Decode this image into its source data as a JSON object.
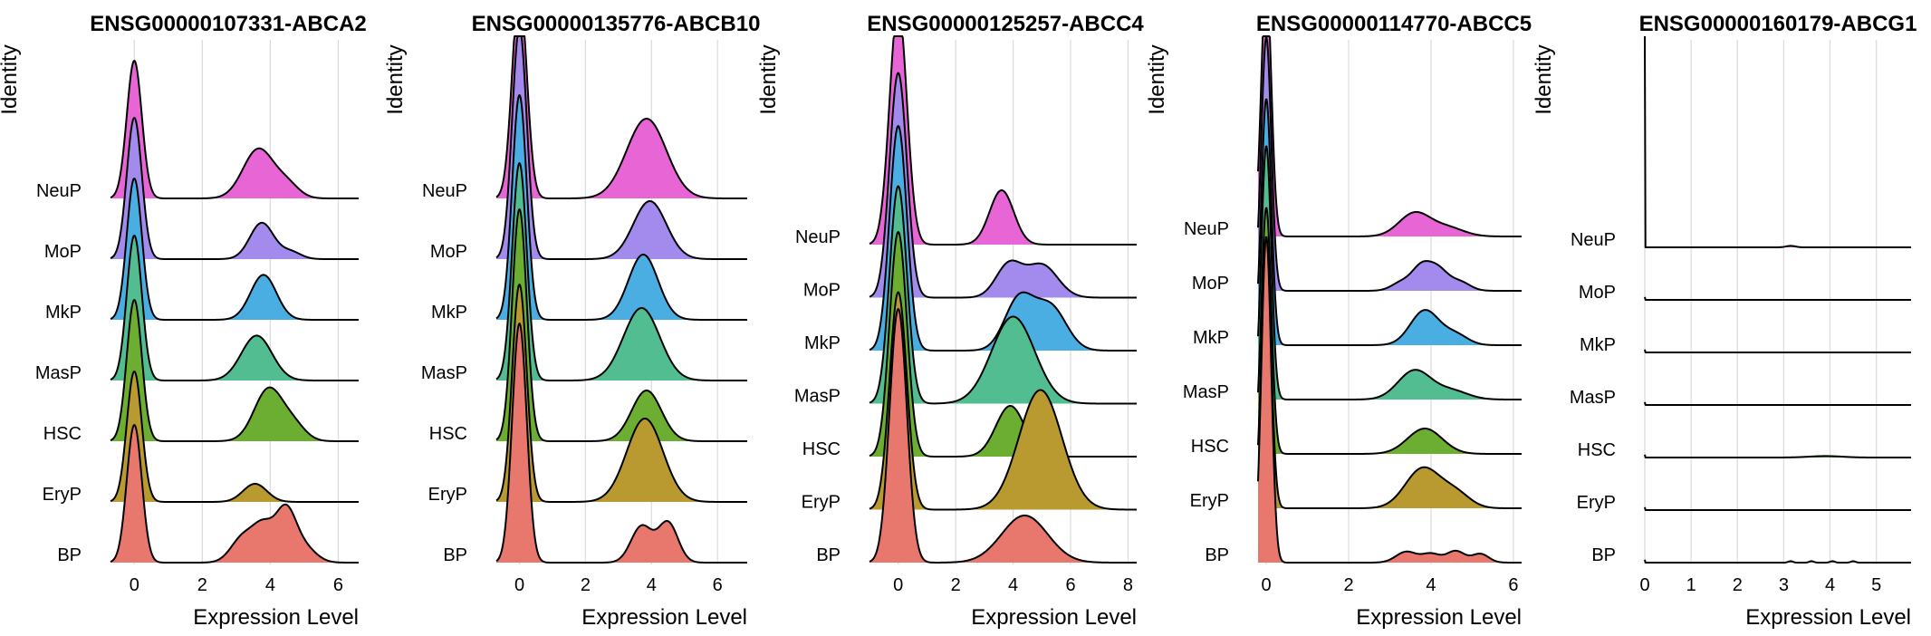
{
  "chart_data": [
    {
      "type": "area",
      "title": "ENSG00000107331-ABCA2",
      "xlabel": "Expression Level",
      "ylabel": "Identity",
      "x_ticks": [
        0,
        2,
        4,
        6
      ],
      "xlim": [
        -0.7,
        6.6
      ],
      "groups": [
        {
          "name": "BP",
          "color": "#E8786E",
          "components": [
            {
              "mu": 0,
              "sigma": 0.22,
              "h": 1.9
            },
            {
              "mu": 3.2,
              "sigma": 0.35,
              "h": 0.35
            },
            {
              "mu": 3.8,
              "sigma": 0.3,
              "h": 0.45
            },
            {
              "mu": 4.45,
              "sigma": 0.3,
              "h": 0.7
            },
            {
              "mu": 5.0,
              "sigma": 0.35,
              "h": 0.2
            }
          ]
        },
        {
          "name": "EryP",
          "color": "#B89A30",
          "components": [
            {
              "mu": 0,
              "sigma": 0.22,
              "h": 1.8
            },
            {
              "mu": 3.55,
              "sigma": 0.35,
              "h": 0.25
            }
          ]
        },
        {
          "name": "HSC",
          "color": "#6BAE32",
          "components": [
            {
              "mu": 0,
              "sigma": 0.22,
              "h": 1.95
            },
            {
              "mu": 3.95,
              "sigma": 0.42,
              "h": 0.72
            },
            {
              "mu": 4.7,
              "sigma": 0.35,
              "h": 0.2
            }
          ]
        },
        {
          "name": "MasP",
          "color": "#53BD92",
          "components": [
            {
              "mu": 0,
              "sigma": 0.22,
              "h": 2.0
            },
            {
              "mu": 3.6,
              "sigma": 0.45,
              "h": 0.62
            }
          ]
        },
        {
          "name": "MkP",
          "color": "#4AAEE3",
          "components": [
            {
              "mu": 0,
              "sigma": 0.22,
              "h": 1.95
            },
            {
              "mu": 3.8,
              "sigma": 0.38,
              "h": 0.62
            }
          ]
        },
        {
          "name": "MoP",
          "color": "#A38BEE",
          "components": [
            {
              "mu": 0,
              "sigma": 0.22,
              "h": 1.95
            },
            {
              "mu": 3.75,
              "sigma": 0.35,
              "h": 0.5
            },
            {
              "mu": 4.6,
              "sigma": 0.3,
              "h": 0.1
            }
          ]
        },
        {
          "name": "NeuP",
          "color": "#E765D4",
          "components": [
            {
              "mu": 0,
              "sigma": 0.22,
              "h": 1.9
            },
            {
              "mu": 3.65,
              "sigma": 0.45,
              "h": 0.68
            },
            {
              "mu": 4.5,
              "sigma": 0.35,
              "h": 0.18
            }
          ]
        }
      ]
    },
    {
      "type": "area",
      "title": "ENSG00000135776-ABCB10",
      "xlabel": "Expression Level",
      "ylabel": "Identity",
      "x_ticks": [
        0,
        2,
        4,
        6
      ],
      "xlim": [
        -0.7,
        6.9
      ],
      "groups": [
        {
          "name": "BP",
          "color": "#E8786E",
          "components": [
            {
              "mu": 0,
              "sigma": 0.22,
              "h": 3.3
            },
            {
              "mu": 3.7,
              "sigma": 0.32,
              "h": 0.5
            },
            {
              "mu": 4.5,
              "sigma": 0.3,
              "h": 0.55
            }
          ]
        },
        {
          "name": "EryP",
          "color": "#B89A30",
          "components": [
            {
              "mu": 0,
              "sigma": 0.22,
              "h": 3.0
            },
            {
              "mu": 3.8,
              "sigma": 0.55,
              "h": 1.15
            }
          ]
        },
        {
          "name": "HSC",
          "color": "#6BAE32",
          "components": [
            {
              "mu": 0,
              "sigma": 0.22,
              "h": 3.2
            },
            {
              "mu": 3.85,
              "sigma": 0.45,
              "h": 0.7
            }
          ]
        },
        {
          "name": "MasP",
          "color": "#53BD92",
          "components": [
            {
              "mu": 0,
              "sigma": 0.22,
              "h": 3.0
            },
            {
              "mu": 3.7,
              "sigma": 0.55,
              "h": 1.0
            }
          ]
        },
        {
          "name": "MkP",
          "color": "#4AAEE3",
          "components": [
            {
              "mu": 0,
              "sigma": 0.22,
              "h": 3.1
            },
            {
              "mu": 3.75,
              "sigma": 0.45,
              "h": 0.9
            }
          ]
        },
        {
          "name": "MoP",
          "color": "#A38BEE",
          "components": [
            {
              "mu": 0,
              "sigma": 0.22,
              "h": 3.2
            },
            {
              "mu": 3.95,
              "sigma": 0.5,
              "h": 0.8
            }
          ]
        },
        {
          "name": "NeuP",
          "color": "#E765D4",
          "components": [
            {
              "mu": 0,
              "sigma": 0.22,
              "h": 2.9
            },
            {
              "mu": 3.85,
              "sigma": 0.6,
              "h": 1.1
            }
          ]
        }
      ]
    },
    {
      "type": "area",
      "title": "ENSG00000125257-ABCC4",
      "xlabel": "Expression Level",
      "ylabel": "Identity",
      "x_ticks": [
        0,
        2,
        4,
        6,
        8
      ],
      "xlim": [
        -1.0,
        8.3
      ],
      "groups": [
        {
          "name": "BP",
          "color": "#E8786E",
          "components": [
            {
              "mu": 0,
              "sigma": 0.3,
              "h": 3.5
            },
            {
              "mu": 4.4,
              "sigma": 0.8,
              "h": 0.65
            }
          ]
        },
        {
          "name": "EryP",
          "color": "#B89A30",
          "components": [
            {
              "mu": 0,
              "sigma": 0.3,
              "h": 3.0
            },
            {
              "mu": 4.95,
              "sigma": 0.75,
              "h": 1.65
            }
          ]
        },
        {
          "name": "HSC",
          "color": "#6BAE32",
          "components": [
            {
              "mu": 0,
              "sigma": 0.3,
              "h": 3.1
            },
            {
              "mu": 3.9,
              "sigma": 0.5,
              "h": 0.7
            }
          ]
        },
        {
          "name": "MasP",
          "color": "#53BD92",
          "components": [
            {
              "mu": 0,
              "sigma": 0.3,
              "h": 3.0
            },
            {
              "mu": 4.0,
              "sigma": 0.75,
              "h": 1.2
            }
          ]
        },
        {
          "name": "MkP",
          "color": "#4AAEE3",
          "components": [
            {
              "mu": 0,
              "sigma": 0.3,
              "h": 3.1
            },
            {
              "mu": 4.2,
              "sigma": 0.5,
              "h": 0.7
            },
            {
              "mu": 5.3,
              "sigma": 0.55,
              "h": 0.6
            }
          ]
        },
        {
          "name": "MoP",
          "color": "#A38BEE",
          "components": [
            {
              "mu": 0,
              "sigma": 0.3,
              "h": 3.1
            },
            {
              "mu": 3.85,
              "sigma": 0.45,
              "h": 0.45
            },
            {
              "mu": 5.0,
              "sigma": 0.55,
              "h": 0.45
            }
          ]
        },
        {
          "name": "NeuP",
          "color": "#E765D4",
          "components": [
            {
              "mu": 0,
              "sigma": 0.3,
              "h": 3.3
            },
            {
              "mu": 3.6,
              "sigma": 0.42,
              "h": 0.75
            }
          ]
        }
      ]
    },
    {
      "type": "area",
      "title": "ENSG00000114770-ABCC5",
      "xlabel": "Expression Level",
      "ylabel": "Identity",
      "x_ticks": [
        0,
        2,
        4,
        6
      ],
      "xlim": [
        -0.2,
        6.2
      ],
      "groups": [
        {
          "name": "BP",
          "color": "#E8786E",
          "components": [
            {
              "mu": 0,
              "sigma": 0.12,
              "h": 4.5
            },
            {
              "mu": 3.4,
              "sigma": 0.25,
              "h": 0.15
            },
            {
              "mu": 4.0,
              "sigma": 0.22,
              "h": 0.12
            },
            {
              "mu": 4.6,
              "sigma": 0.22,
              "h": 0.16
            },
            {
              "mu": 5.2,
              "sigma": 0.2,
              "h": 0.12
            }
          ]
        },
        {
          "name": "EryP",
          "color": "#B89A30",
          "components": [
            {
              "mu": 0,
              "sigma": 0.12,
              "h": 3.5
            },
            {
              "mu": 3.8,
              "sigma": 0.42,
              "h": 0.55
            },
            {
              "mu": 4.6,
              "sigma": 0.35,
              "h": 0.2
            }
          ]
        },
        {
          "name": "HSC",
          "color": "#6BAE32",
          "components": [
            {
              "mu": 0,
              "sigma": 0.12,
              "h": 3.4
            },
            {
              "mu": 3.85,
              "sigma": 0.42,
              "h": 0.35
            }
          ]
        },
        {
          "name": "MasP",
          "color": "#53BD92",
          "components": [
            {
              "mu": 0,
              "sigma": 0.12,
              "h": 3.5
            },
            {
              "mu": 3.6,
              "sigma": 0.4,
              "h": 0.4
            },
            {
              "mu": 4.5,
              "sigma": 0.4,
              "h": 0.12
            }
          ]
        },
        {
          "name": "MkP",
          "color": "#4AAEE3",
          "components": [
            {
              "mu": 0,
              "sigma": 0.12,
              "h": 3.4
            },
            {
              "mu": 3.85,
              "sigma": 0.35,
              "h": 0.48
            },
            {
              "mu": 4.6,
              "sigma": 0.3,
              "h": 0.14
            }
          ]
        },
        {
          "name": "MoP",
          "color": "#A38BEE",
          "components": [
            {
              "mu": 0,
              "sigma": 0.12,
              "h": 3.5
            },
            {
              "mu": 3.3,
              "sigma": 0.25,
              "h": 0.12
            },
            {
              "mu": 3.75,
              "sigma": 0.22,
              "h": 0.28
            },
            {
              "mu": 4.15,
              "sigma": 0.25,
              "h": 0.3
            },
            {
              "mu": 4.7,
              "sigma": 0.25,
              "h": 0.12
            }
          ]
        },
        {
          "name": "NeuP",
          "color": "#E765D4",
          "components": [
            {
              "mu": 0,
              "sigma": 0.12,
              "h": 3.6
            },
            {
              "mu": 3.6,
              "sigma": 0.38,
              "h": 0.32
            },
            {
              "mu": 4.4,
              "sigma": 0.4,
              "h": 0.12
            }
          ]
        }
      ]
    },
    {
      "type": "area",
      "title": "ENSG00000160179-ABCG1",
      "xlabel": "Expression Level",
      "ylabel": "Identity",
      "x_ticks": [
        0,
        1,
        2,
        3,
        4,
        5
      ],
      "xlim": [
        0,
        5.75
      ],
      "groups": [
        {
          "name": "BP",
          "color": "#E8786E",
          "components": [
            {
              "mu": 0,
              "sigma": 0.005,
              "h": 0.04
            },
            {
              "mu": 3.15,
              "sigma": 0.05,
              "h": 0.02
            },
            {
              "mu": 3.6,
              "sigma": 0.05,
              "h": 0.02
            },
            {
              "mu": 4.05,
              "sigma": 0.05,
              "h": 0.02
            },
            {
              "mu": 4.5,
              "sigma": 0.05,
              "h": 0.02
            }
          ]
        },
        {
          "name": "EryP",
          "color": "#B89A30",
          "components": [
            {
              "mu": 0,
              "sigma": 0.005,
              "h": 0.04
            }
          ]
        },
        {
          "name": "HSC",
          "color": "#6BAE32",
          "components": [
            {
              "mu": 0,
              "sigma": 0.005,
              "h": 0.04
            },
            {
              "mu": 3.9,
              "sigma": 0.35,
              "h": 0.02
            }
          ]
        },
        {
          "name": "MasP",
          "color": "#53BD92",
          "components": [
            {
              "mu": 0,
              "sigma": 0.005,
              "h": 0.04
            }
          ]
        },
        {
          "name": "MkP",
          "color": "#4AAEE3",
          "components": [
            {
              "mu": 0,
              "sigma": 0.005,
              "h": 0.04
            }
          ]
        },
        {
          "name": "MoP",
          "color": "#A38BEE",
          "components": [
            {
              "mu": 0,
              "sigma": 0.005,
              "h": 0.04
            }
          ]
        },
        {
          "name": "NeuP",
          "color": "#E765D4",
          "components": [
            {
              "mu": 0,
              "sigma": 0.002,
              "h": 4.0
            },
            {
              "mu": 3.15,
              "sigma": 0.1,
              "h": 0.02
            }
          ]
        }
      ]
    }
  ]
}
